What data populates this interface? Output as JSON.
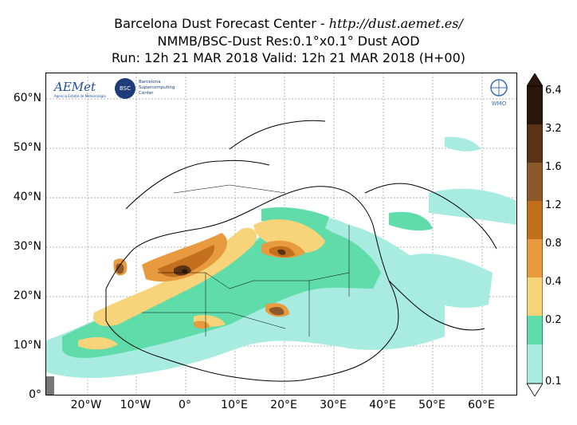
{
  "title": {
    "line1_prefix": "Barcelona Dust Forecast Center - ",
    "line1_url": "http://dust.aemet.es/",
    "line2": "NMMB/BSC-Dust   Res:0.1°x0.1°   Dust AOD",
    "line3": "Run: 12h 21 MAR 2018   Valid: 12h 21 MAR 2018 (H+00)"
  },
  "logos": {
    "aemet": "AEMet",
    "aemet_sub": "Agencia Estatal de Meteorología",
    "bsc": "BSC",
    "bsc_text": "Barcelona Supercomputing Center",
    "wmo": "WMO"
  },
  "axes": {
    "y_ticks": [
      "60°N",
      "50°N",
      "40°N",
      "30°N",
      "20°N",
      "10°N",
      "0°"
    ],
    "x_ticks": [
      "20°W",
      "10°W",
      "0°",
      "10°E",
      "20°E",
      "30°E",
      "40°E",
      "50°E",
      "60°E"
    ]
  },
  "colorbar": {
    "labels": [
      "6.4",
      "3.2",
      "1.6",
      "1.2",
      "0.8",
      "0.4",
      "0.2",
      "0.1"
    ],
    "colors": [
      "#2b160b",
      "#5a3216",
      "#8c5a2a",
      "#c2701e",
      "#e89a3f",
      "#f7d37a",
      "#5fdcaa",
      "#a8ebe0"
    ]
  },
  "map": {
    "land_color": "#ffffff",
    "border_color": "#000000",
    "grid": true
  }
}
